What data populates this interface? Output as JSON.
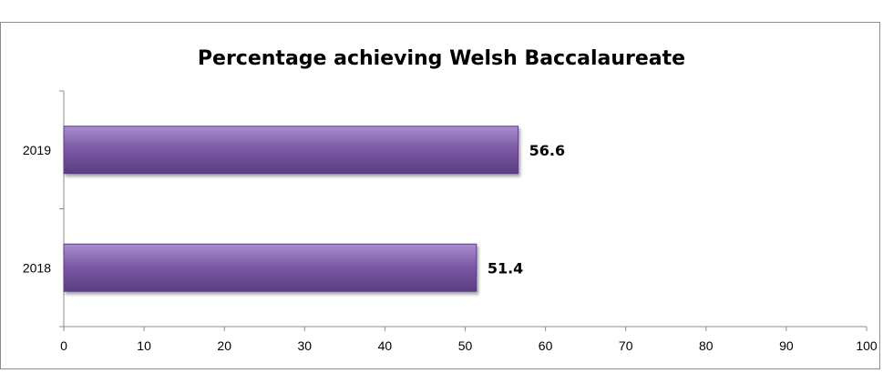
{
  "chart_data": {
    "type": "bar",
    "orientation": "horizontal",
    "title": "Percentage achieving Welsh Baccalaureate",
    "xlabel": "",
    "ylabel": "",
    "categories": [
      "2018",
      "2019"
    ],
    "values": [
      51.4,
      56.6
    ],
    "data_labels": [
      "51.4",
      "56.6"
    ],
    "xlim": [
      0,
      100
    ],
    "x_ticks": [
      0,
      10,
      20,
      30,
      40,
      50,
      60,
      70,
      80,
      90,
      100
    ],
    "grid": false,
    "legend": "none",
    "bar_color": "#7e5aa8",
    "bar_color_light": "#a98fd0",
    "bar_color_dark": "#5a3d80"
  }
}
